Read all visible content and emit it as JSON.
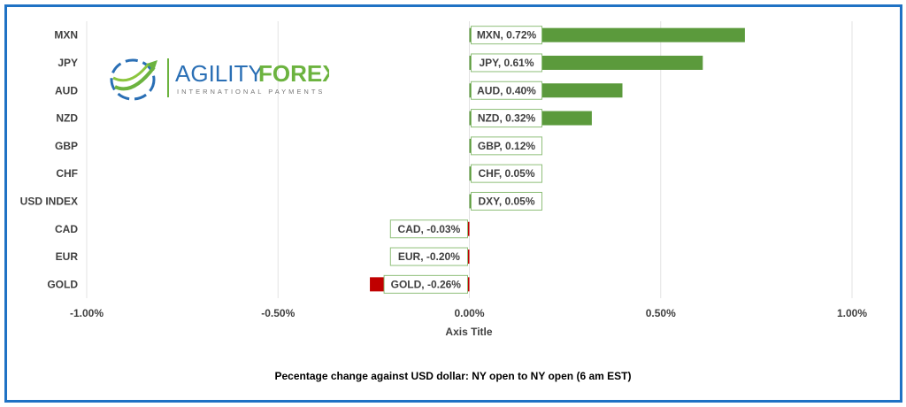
{
  "chart_data": {
    "type": "bar",
    "orientation": "horizontal",
    "categories": [
      "MXN",
      "JPY",
      "AUD",
      "NZD",
      "GBP",
      "CHF",
      "USD INDEX",
      "CAD",
      "EUR",
      "GOLD"
    ],
    "values": [
      0.72,
      0.61,
      0.4,
      0.32,
      0.12,
      0.05,
      0.05,
      -0.03,
      -0.2,
      -0.26
    ],
    "data_labels": [
      "MXN, 0.72%",
      "JPY, 0.61%",
      "AUD, 0.40%",
      "NZD, 0.32%",
      "GBP, 0.12%",
      "CHF, 0.05%",
      "DXY, 0.05%",
      "CAD, -0.03%",
      "EUR, -0.20%",
      "GOLD, -0.26%"
    ],
    "xlim": [
      -1.0,
      1.0
    ],
    "xticks": [
      -1.0,
      -0.5,
      0.0,
      0.5,
      1.0
    ],
    "xtick_labels": [
      "-1.00%",
      "-0.50%",
      "0.00%",
      "0.50%",
      "1.00%"
    ],
    "xlabel": "Axis Title",
    "grid": true,
    "colors": {
      "positive": "#5b9a3c",
      "negative": "#c00000",
      "border": "#1f72c4",
      "label_border": "#8fbf7a"
    }
  },
  "logo": {
    "name": "AGILITY",
    "name2": "FOREX",
    "tagline": "INTERNATIONAL PAYMENTS"
  },
  "footer": "Pecentage change against USD dollar:  NY open to NY open  (6 am EST)"
}
